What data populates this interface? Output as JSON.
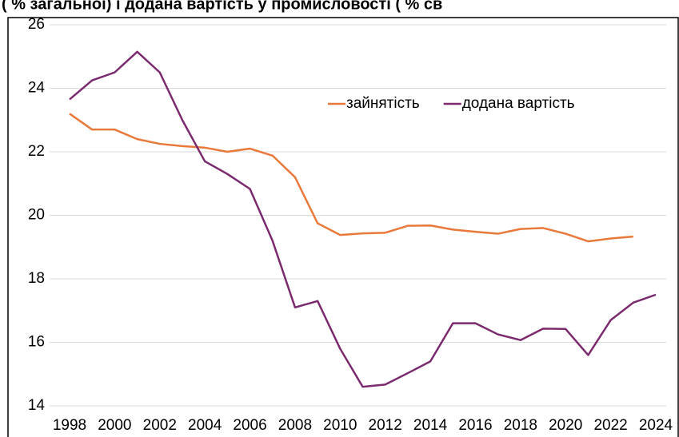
{
  "chart_data": {
    "type": "line",
    "title": "( % загальної) і додана вартість у промисловості ( % св",
    "x": [
      1998,
      1999,
      2000,
      2001,
      2002,
      2003,
      2004,
      2005,
      2006,
      2007,
      2008,
      2009,
      2010,
      2011,
      2012,
      2013,
      2014,
      2015,
      2016,
      2017,
      2018,
      2019,
      2020,
      2021,
      2022,
      2023,
      2024
    ],
    "series": [
      {
        "name": "зайнятість",
        "color": "#e8793a",
        "values": [
          23.2,
          22.7,
          22.7,
          22.4,
          22.25,
          22.18,
          22.13,
          22.0,
          22.1,
          21.88,
          21.2,
          19.75,
          19.38,
          19.43,
          19.45,
          19.67,
          19.68,
          19.55,
          19.48,
          19.42,
          19.57,
          19.6,
          19.42,
          19.18,
          19.27,
          19.33,
          null
        ]
      },
      {
        "name": "додана вартість",
        "color": "#7b2a6e",
        "values": [
          23.65,
          24.25,
          24.5,
          25.15,
          24.5,
          23.0,
          21.7,
          21.3,
          20.83,
          19.2,
          17.1,
          17.3,
          15.8,
          14.6,
          14.67,
          15.03,
          15.4,
          16.6,
          16.6,
          16.25,
          16.07,
          16.43,
          16.42,
          15.6,
          16.7,
          17.25,
          17.5
        ]
      }
    ],
    "xlim": [
      1998,
      2024
    ],
    "xticks": [
      1998,
      2000,
      2002,
      2004,
      2006,
      2008,
      2010,
      2012,
      2014,
      2016,
      2018,
      2020,
      2022,
      2024
    ],
    "ylim": [
      14,
      26
    ],
    "yticks": [
      14,
      16,
      18,
      20,
      22,
      24,
      26
    ],
    "grid": true
  }
}
